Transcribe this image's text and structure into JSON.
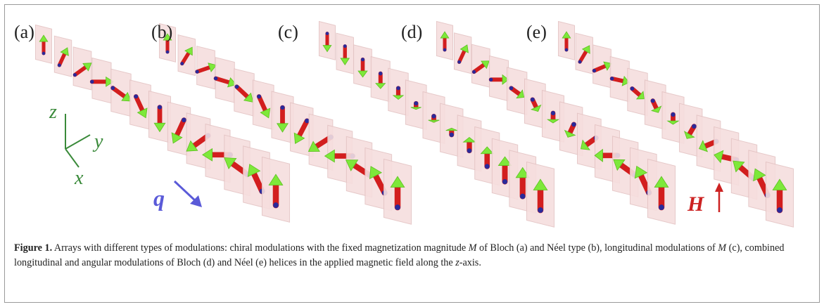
{
  "figure": {
    "panels": [
      "(a)",
      "(b)",
      "(c)",
      "(d)",
      "(e)"
    ],
    "axes": {
      "z": "z",
      "y": "y",
      "x": "x"
    },
    "wavevector": "q",
    "field": "H",
    "caption": {
      "label": "Figure 1.",
      "parts": [
        "Arrays with different types of modulations: chiral modulations with the fixed magnetization magnitude ",
        "M",
        " of Bloch (a) and Néel type (b), longitudinal modulations of ",
        "M",
        " (c), combined longitudinal and angular modulations of Bloch (d) and Néel (e) helices in the applied magnetic field along the ",
        "z",
        "-axis."
      ]
    }
  }
}
